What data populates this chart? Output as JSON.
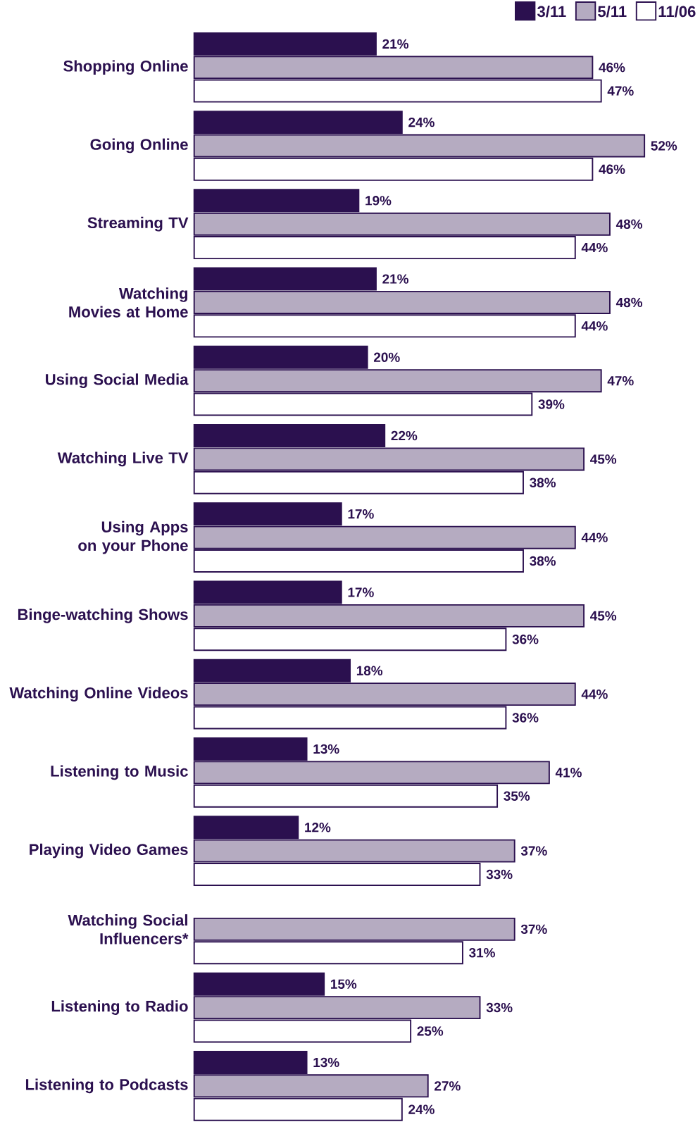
{
  "chart_data": {
    "type": "bar",
    "orientation": "horizontal",
    "legend": "top right",
    "categories": [
      "Shopping Online",
      "Going Online",
      "Streaming TV",
      "Watching Movies at Home",
      "Using Social Media",
      "Watching Live TV",
      "Using Apps on your Phone",
      "Binge-watching Shows",
      "Watching Online Videos",
      "Listening to Music",
      "Playing Video Games",
      "Watching Social Influencers*",
      "Listening to Radio",
      "Listening to Podcasts"
    ],
    "series": [
      {
        "name": "3/11",
        "color": "#2b104f",
        "values": [
          21,
          24,
          19,
          21,
          20,
          22,
          17,
          17,
          18,
          13,
          12,
          null,
          15,
          13
        ],
        "value_labels": [
          "21%",
          "24%",
          "19%",
          "21%",
          "20%",
          "22%",
          "17%",
          "17%",
          "18%",
          "13%",
          "12%",
          null,
          "15%",
          "13%"
        ]
      },
      {
        "name": "5/11",
        "color": "#2b104f",
        "values": [
          46,
          52,
          48,
          48,
          47,
          45,
          44,
          45,
          44,
          41,
          37,
          37,
          33,
          27
        ],
        "value_labels": [
          "46%",
          "52%",
          "48%",
          "48%",
          "47%",
          "45%",
          "44%",
          "45%",
          "44%",
          "41%",
          "37%",
          "37%",
          "33%",
          "27%"
        ]
      },
      {
        "name": "11/06",
        "color": "#ffffff",
        "values": [
          47,
          46,
          44,
          44,
          39,
          38,
          38,
          36,
          36,
          35,
          33,
          31,
          25,
          24
        ],
        "value_labels": [
          "47%",
          "46%",
          "44%",
          "44%",
          "39%",
          "38%",
          "38%",
          "36%",
          "36%",
          "35%",
          "33%",
          "31%",
          "25%",
          "24%"
        ]
      }
    ]
  }
}
